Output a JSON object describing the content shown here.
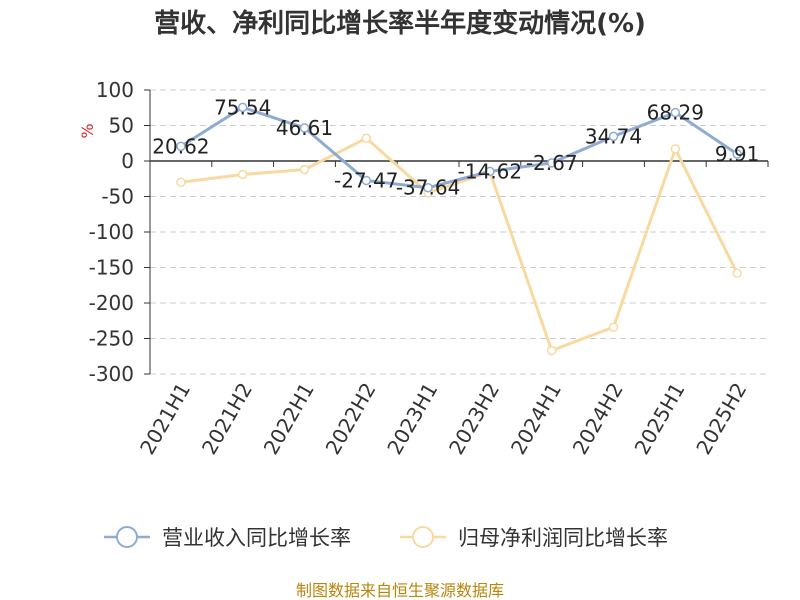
{
  "chart_data": {
    "type": "line",
    "title": "营收、净利同比增长率半年度变动情况(%)",
    "ylabel": "%",
    "ylim": [
      -300,
      100
    ],
    "yticks": [
      100,
      50,
      0,
      -50,
      -100,
      -150,
      -200,
      -250,
      -300
    ],
    "grid": true,
    "legend_position": "bottom",
    "categories": [
      "2021H1",
      "2021H2",
      "2022H1",
      "2022H2",
      "2023H1",
      "2023H2",
      "2024H1",
      "2024H2",
      "2025H1",
      "2025H2"
    ],
    "series": [
      {
        "name": "营业收入同比增长率",
        "color": "#8fabd4",
        "values": [
          20.62,
          75.54,
          46.61,
          -27.47,
          -37.64,
          -14.62,
          -2.67,
          34.74,
          68.29,
          9.91
        ],
        "labels": [
          "20.62",
          "75.54",
          "46.61",
          "-27.47",
          "-37.64",
          "-14.62",
          "-2.67",
          "34.74",
          "68.29",
          "9.91"
        ]
      },
      {
        "name": "归母净利润同比增长率",
        "color": "#f8d9a0",
        "values": [
          -30,
          -19,
          -12,
          32,
          -45,
          -15,
          -267,
          -234,
          17,
          -158
        ]
      }
    ],
    "source": "制图数据来自恒生聚源数据库"
  }
}
